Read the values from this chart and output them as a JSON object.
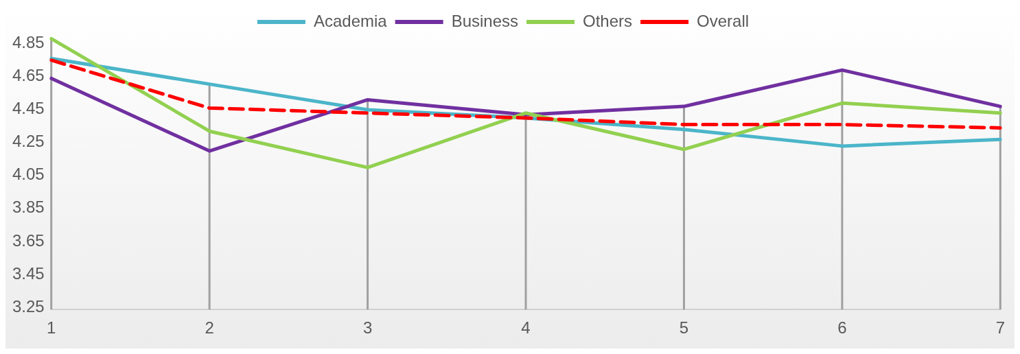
{
  "chart_data": {
    "type": "line",
    "categories": [
      "1",
      "2",
      "3",
      "4",
      "5",
      "6",
      "7"
    ],
    "series": [
      {
        "name": "Academia",
        "color": "#4bb5c9",
        "values": [
          4.77,
          4.615,
          4.46,
          4.41,
          4.34,
          4.24,
          4.28
        ]
      },
      {
        "name": "Business",
        "color": "#7030a0",
        "values": [
          4.65,
          4.21,
          4.52,
          4.43,
          4.48,
          4.7,
          4.48
        ]
      },
      {
        "name": "Others",
        "color": "#92d050",
        "values": [
          4.89,
          4.33,
          4.11,
          4.44,
          4.22,
          4.5,
          4.44
        ]
      },
      {
        "name": "Overall",
        "color": "#ff0000",
        "line_style": "dashed",
        "values": [
          4.76,
          4.47,
          4.44,
          4.41,
          4.37,
          4.37,
          4.35
        ]
      }
    ],
    "ylim": [
      3.25,
      4.9
    ],
    "yticks": [
      3.25,
      3.45,
      3.65,
      3.85,
      4.05,
      4.25,
      4.45,
      4.65,
      4.85
    ],
    "grid": "x",
    "legend": "top",
    "marker": "none",
    "line_style": "solid"
  }
}
